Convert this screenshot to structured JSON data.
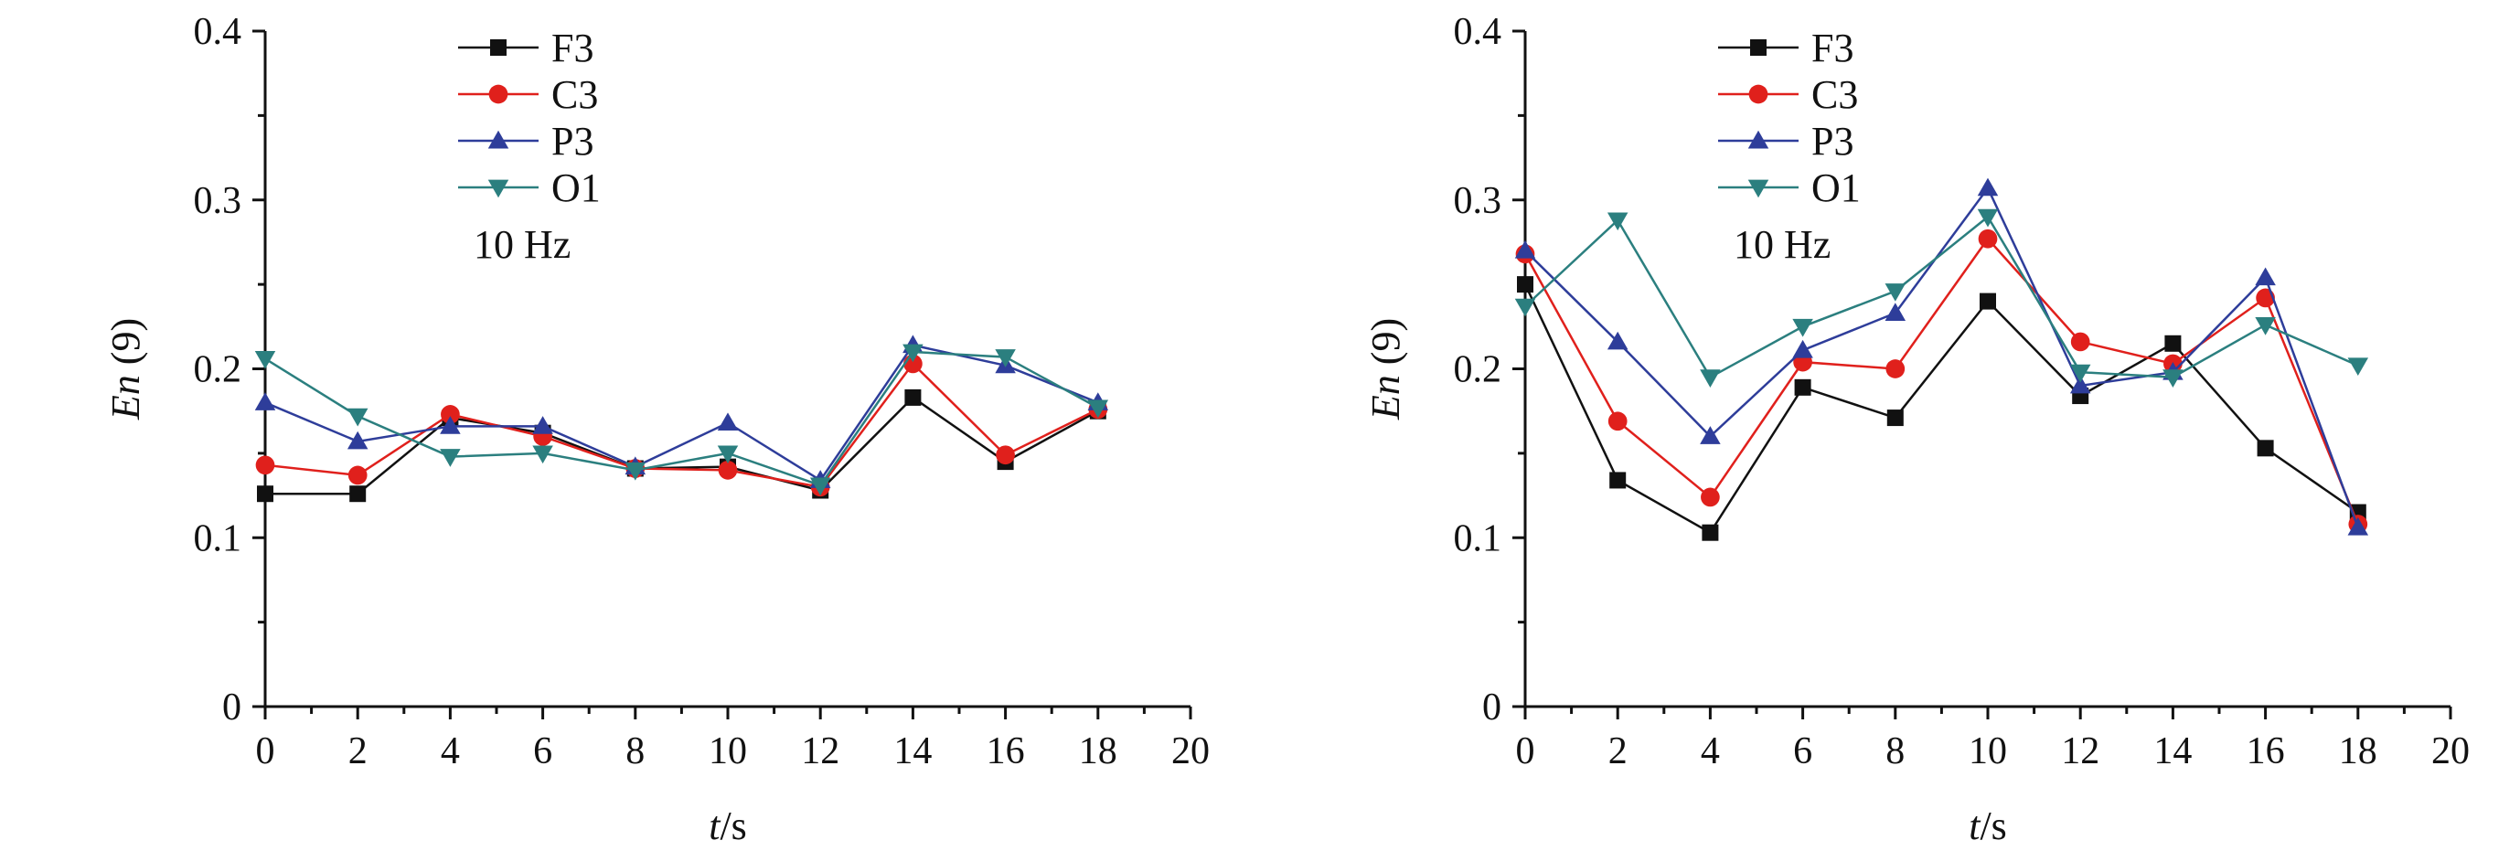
{
  "chart_data": [
    {
      "type": "line",
      "annotation": "10 Hz",
      "xlabel_var": "t",
      "xlabel_unit": "/s",
      "ylabel_var": "En",
      "ylabel_rest": " (9)",
      "xlim": [
        0,
        20
      ],
      "ylim": [
        0,
        0.4
      ],
      "x_ticks": [
        0,
        2,
        4,
        6,
        8,
        10,
        12,
        14,
        16,
        18,
        20
      ],
      "y_ticks": [
        0,
        0.1,
        0.2,
        0.3,
        0.4
      ],
      "y_tick_labels": [
        "0",
        "0.1",
        "0.2",
        "0.3",
        "0.4"
      ],
      "legend_position": "top-center",
      "grid": false,
      "x": [
        0,
        2,
        4,
        6,
        8,
        10,
        12,
        14,
        16,
        18
      ],
      "series": [
        {
          "name": "F3",
          "color": "#111111",
          "marker": "square",
          "values": [
            0.126,
            0.126,
            0.171,
            0.162,
            0.141,
            0.142,
            0.128,
            0.183,
            0.145,
            0.175
          ]
        },
        {
          "name": "C3",
          "color": "#e0201c",
          "marker": "circle",
          "values": [
            0.143,
            0.137,
            0.173,
            0.16,
            0.141,
            0.14,
            0.13,
            0.203,
            0.149,
            0.176
          ]
        },
        {
          "name": "P3",
          "color": "#2e3d9a",
          "marker": "triangle-up",
          "values": [
            0.18,
            0.157,
            0.166,
            0.166,
            0.142,
            0.168,
            0.134,
            0.214,
            0.202,
            0.18
          ]
        },
        {
          "name": "O1",
          "color": "#2b7f7f",
          "marker": "triangle-down",
          "values": [
            0.206,
            0.172,
            0.148,
            0.15,
            0.14,
            0.15,
            0.131,
            0.21,
            0.207,
            0.177
          ]
        }
      ]
    },
    {
      "type": "line",
      "annotation": "10 Hz",
      "xlabel_var": "t",
      "xlabel_unit": "/s",
      "ylabel_var": "En",
      "ylabel_rest": " (9)",
      "xlim": [
        0,
        20
      ],
      "ylim": [
        0,
        0.4
      ],
      "x_ticks": [
        0,
        2,
        4,
        6,
        8,
        10,
        12,
        14,
        16,
        18,
        20
      ],
      "y_ticks": [
        0,
        0.1,
        0.2,
        0.3,
        0.4
      ],
      "y_tick_labels": [
        "0",
        "0.1",
        "0.2",
        "0.3",
        "0.4"
      ],
      "legend_position": "top-center",
      "grid": false,
      "x": [
        0,
        2,
        4,
        6,
        8,
        10,
        12,
        14,
        16,
        18
      ],
      "series": [
        {
          "name": "F3",
          "color": "#111111",
          "marker": "square",
          "values": [
            0.25,
            0.134,
            0.103,
            0.189,
            0.171,
            0.24,
            0.184,
            0.215,
            0.153,
            0.115
          ]
        },
        {
          "name": "C3",
          "color": "#e0201c",
          "marker": "circle",
          "values": [
            0.268,
            0.169,
            0.124,
            0.204,
            0.2,
            0.277,
            0.216,
            0.203,
            0.242,
            0.108
          ]
        },
        {
          "name": "P3",
          "color": "#2e3d9a",
          "marker": "triangle-up",
          "values": [
            0.27,
            0.216,
            0.16,
            0.211,
            0.233,
            0.307,
            0.19,
            0.198,
            0.254,
            0.106
          ]
        },
        {
          "name": "O1",
          "color": "#2b7f7f",
          "marker": "triangle-down",
          "values": [
            0.237,
            0.288,
            0.195,
            0.225,
            0.246,
            0.29,
            0.198,
            0.195,
            0.226,
            0.202
          ]
        }
      ]
    }
  ]
}
